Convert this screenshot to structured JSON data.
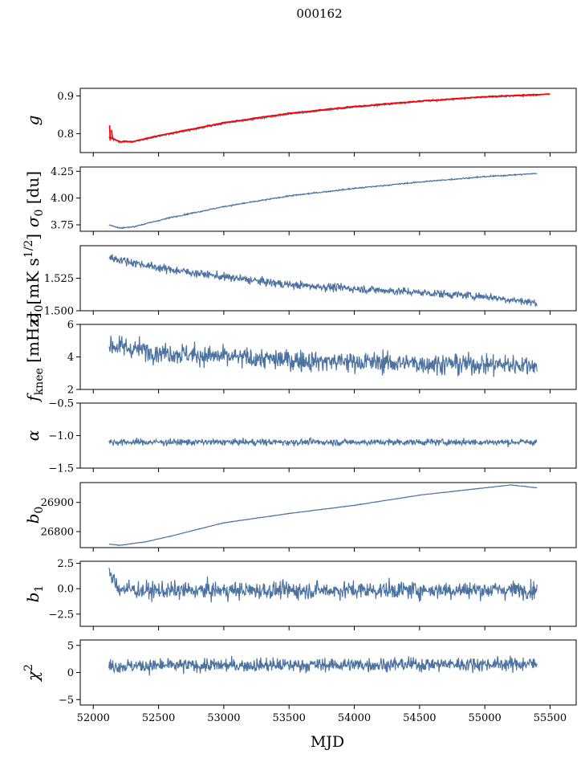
{
  "title": "000162",
  "chart_data": {
    "type": "line",
    "title": "000162",
    "xlabel": "MJD",
    "xlim": [
      51900,
      55700
    ],
    "xticks": [
      52000,
      52500,
      53000,
      53500,
      54000,
      54500,
      55000,
      55500
    ],
    "x_range": [
      52120,
      55400
    ],
    "series_color": "#4c72a0",
    "fit_color": "#ff0000",
    "panels": [
      {
        "id": "g",
        "ylabel": "g",
        "ylim": [
          0.75,
          0.92
        ],
        "yticks": [
          0.8,
          0.9
        ],
        "ytick_labels": [
          "0.8",
          "0.9"
        ],
        "trend": {
          "x": [
            52120,
            52200,
            52300,
            52500,
            53000,
            53500,
            54000,
            54500,
            55000,
            55400
          ],
          "y": [
            0.79,
            0.778,
            0.778,
            0.793,
            0.827,
            0.852,
            0.87,
            0.885,
            0.897,
            0.902
          ]
        },
        "noise": 0.0015,
        "fit_line": {
          "x": [
            52120,
            52200,
            52300,
            52500,
            53000,
            53500,
            54000,
            54500,
            55000,
            55500
          ],
          "y": [
            0.792,
            0.779,
            0.779,
            0.795,
            0.829,
            0.854,
            0.872,
            0.886,
            0.898,
            0.905
          ]
        }
      },
      {
        "id": "sigma0-du",
        "ylabel": "σ0 [du]",
        "ylim": [
          3.69,
          4.29
        ],
        "yticks": [
          3.75,
          4.0,
          4.25
        ],
        "ytick_labels": [
          "3.75",
          "4.00",
          "4.25"
        ],
        "trend": {
          "x": [
            52120,
            52200,
            52300,
            52600,
            53000,
            53500,
            54000,
            54500,
            55000,
            55400
          ],
          "y": [
            3.75,
            3.72,
            3.73,
            3.82,
            3.92,
            4.02,
            4.09,
            4.15,
            4.2,
            4.23
          ]
        },
        "noise": 0.004
      },
      {
        "id": "sigma0-mk",
        "ylabel": "σ0[mK s^1/2]",
        "ylim": [
          1.5,
          1.55
        ],
        "yticks": [
          1.5,
          1.525
        ],
        "ytick_labels": [
          "1.500",
          "1.525"
        ],
        "trend": {
          "x": [
            52120,
            52500,
            53000,
            53500,
            54000,
            54500,
            55000,
            55400
          ],
          "y": [
            1.541,
            1.533,
            1.526,
            1.52,
            1.517,
            1.514,
            1.511,
            1.506
          ]
        },
        "noise": 0.0022
      },
      {
        "id": "fknee",
        "ylabel": "fknee [mHz]",
        "ylim": [
          2,
          6
        ],
        "yticks": [
          2,
          4,
          6
        ],
        "ytick_labels": [
          "2",
          "4",
          "6"
        ],
        "trend": {
          "x": [
            52120,
            52500,
            53000,
            53500,
            54000,
            54500,
            55000,
            55400
          ],
          "y": [
            4.7,
            4.3,
            4.0,
            3.8,
            3.7,
            3.6,
            3.55,
            3.5
          ]
        },
        "noise": 0.45
      },
      {
        "id": "alpha",
        "ylabel": "α",
        "ylim": [
          -1.5,
          -0.5
        ],
        "yticks": [
          -1.5,
          -1.0,
          -0.5
        ],
        "ytick_labels": [
          "−1.5",
          "−1.0",
          "−0.5"
        ],
        "trend": {
          "x": [
            52120,
            55400
          ],
          "y": [
            -1.1,
            -1.1
          ]
        },
        "noise": 0.035
      },
      {
        "id": "b0",
        "ylabel": "b0",
        "ylim": [
          26745,
          26968
        ],
        "yticks": [
          26800,
          26900
        ],
        "ytick_labels": [
          "26800",
          "26900"
        ],
        "trend": {
          "x": [
            52120,
            52200,
            52400,
            52600,
            53000,
            53500,
            54000,
            54500,
            55000,
            55200,
            55400
          ],
          "y": [
            26757,
            26753,
            26765,
            26785,
            26830,
            26862,
            26890,
            26925,
            26950,
            26960,
            26950
          ]
        },
        "noise": 0.6
      },
      {
        "id": "b1",
        "ylabel": "b1",
        "ylim": [
          -3.7,
          2.7
        ],
        "yticks": [
          -2.5,
          0.0,
          2.5
        ],
        "ytick_labels": [
          "−2.5",
          "0.0",
          "2.5"
        ],
        "trend": {
          "x": [
            52120,
            52200,
            52400,
            55400
          ],
          "y": [
            1.5,
            0.0,
            -0.2,
            -0.1
          ]
        },
        "noise": 0.6
      },
      {
        "id": "chi2",
        "ylabel": "χ2",
        "ylim": [
          -6,
          6
        ],
        "yticks": [
          -5,
          0,
          5
        ],
        "ytick_labels": [
          "−5",
          "0",
          "5"
        ],
        "trend": {
          "x": [
            52120,
            55400
          ],
          "y": [
            1.2,
            1.6
          ]
        },
        "noise": 0.9
      }
    ]
  }
}
